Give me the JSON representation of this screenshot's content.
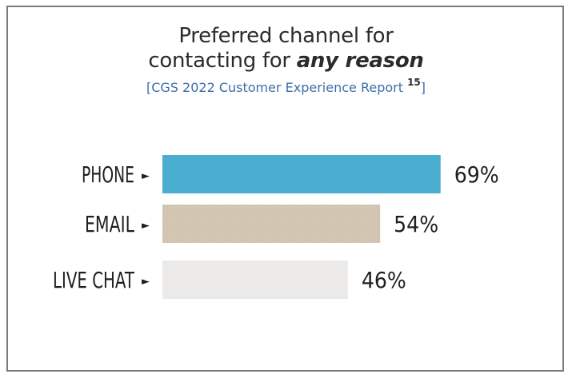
{
  "chart_data": {
    "type": "bar",
    "orientation": "horizontal",
    "title_line1": "Preferred channel for",
    "title_line2_prefix": "contacting for ",
    "title_line2_emphasis": "any reason",
    "subtitle": "[CGS 2022  Customer Experience Report",
    "subtitle_superscript": "15",
    "subtitle_end": "]",
    "categories": [
      "PHONE",
      "EMAIL",
      "LIVE CHAT"
    ],
    "values": [
      69,
      54,
      46
    ],
    "value_labels": [
      "69%",
      "54%",
      "46%"
    ],
    "bar_colors": [
      "#4aaed1",
      "#d3c7b4",
      "#eceae8"
    ],
    "marker_glyph": "►",
    "xlim": [
      0,
      100
    ],
    "grid": false,
    "legend": "none"
  }
}
